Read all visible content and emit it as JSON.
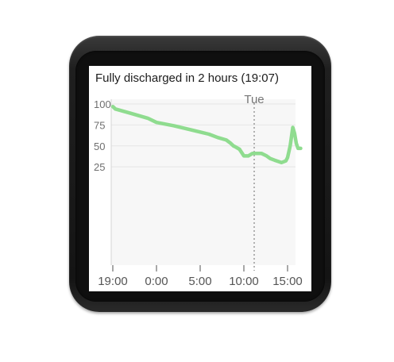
{
  "screen": {
    "title": "Fully discharged in 2 hours (19:07)"
  },
  "colors": {
    "line": "#8fdc8f",
    "grid": "#e6e6e6",
    "plot_background": "#f7f7f7",
    "day_marker": "#9a9a9a"
  },
  "chart_data": {
    "type": "line",
    "title": "",
    "xlabel": "",
    "ylabel": "",
    "ylim": [
      0,
      100
    ],
    "xlim": [
      "19:00",
      "17:00 (next day)"
    ],
    "y_ticks": [
      "100",
      "75",
      "50",
      "25"
    ],
    "x_ticks": [
      "19:00",
      "0:00",
      "5:00",
      "10:00",
      "15:00"
    ],
    "day_marker": {
      "label": "Tue",
      "at": "0:00 Tue"
    },
    "grid": true,
    "series": [
      {
        "x_hours_since_19:00": [
          0,
          0.3,
          2,
          4,
          5,
          7,
          9,
          11,
          12,
          13,
          13.5,
          13.8,
          14,
          14.5,
          15,
          15.5,
          16,
          17,
          17.6,
          18,
          18.5,
          19.3,
          19.8,
          20,
          20.3,
          20.6,
          20.8,
          21,
          21.2,
          21.5
        ],
        "battery_percent": [
          97,
          94,
          89,
          83,
          78,
          74,
          69,
          64,
          60,
          57,
          53,
          50,
          49,
          46,
          38,
          38,
          41,
          41,
          38,
          35,
          33,
          30,
          32,
          36,
          50,
          72,
          65,
          53,
          47,
          47
        ]
      }
    ]
  }
}
